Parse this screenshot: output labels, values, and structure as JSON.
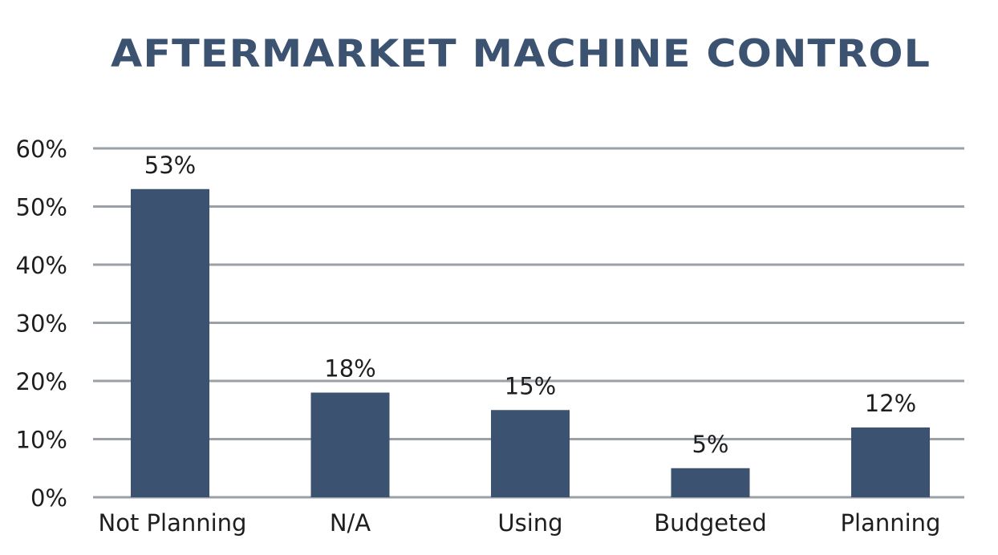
{
  "chart_data": {
    "type": "bar",
    "title": "AFTERMARKET MACHINE CONTROL",
    "xlabel": "",
    "ylabel": "",
    "categories": [
      "Not Planning",
      "N/A",
      "Using",
      "Budgeted",
      "Planning"
    ],
    "values": [
      53,
      18,
      15,
      5,
      12
    ],
    "data_labels": [
      "53%",
      "18%",
      "15%",
      "5%",
      "12%"
    ],
    "ylim": [
      0,
      60
    ],
    "yticks": [
      0,
      10,
      20,
      30,
      40,
      50,
      60
    ],
    "ytick_labels": [
      "0%",
      "10%",
      "20%",
      "30%",
      "40%",
      "50%",
      "60%"
    ],
    "grid": true,
    "legend": "none",
    "bar_color": "#3b5270",
    "grid_color": "#9aa0a6",
    "title_color": "#3b5270"
  }
}
